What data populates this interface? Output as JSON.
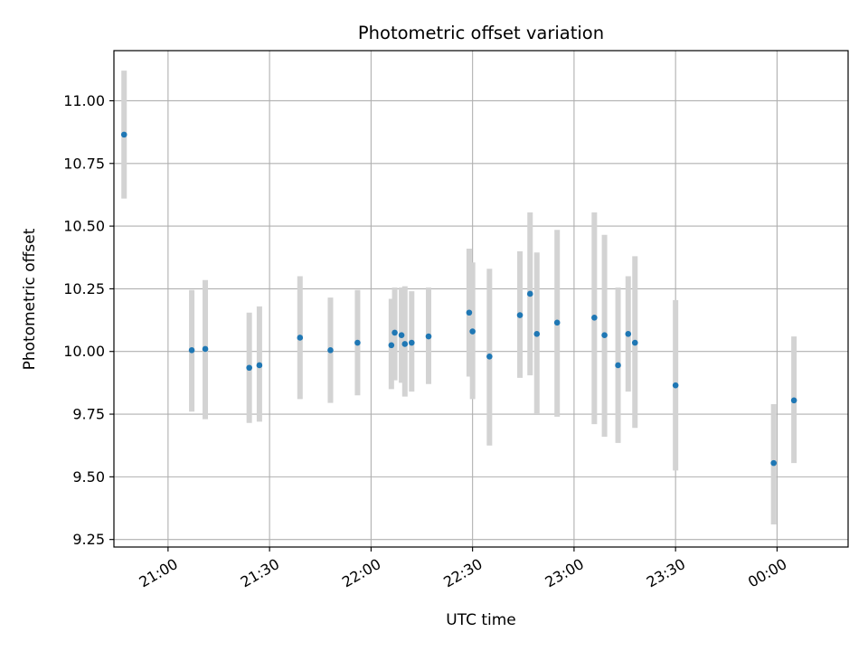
{
  "chart_data": {
    "type": "scatter",
    "title": "Photometric offset variation",
    "xlabel": "UTC time",
    "ylabel": "Photometric offset",
    "x_axis": "time",
    "xlim": [
      "20:44",
      "24:21"
    ],
    "ylim": [
      9.22,
      11.2
    ],
    "grid": true,
    "x_ticks": [
      {
        "t": "21:00",
        "label": "21:00"
      },
      {
        "t": "21:30",
        "label": "21:30"
      },
      {
        "t": "22:00",
        "label": "22:00"
      },
      {
        "t": "22:30",
        "label": "22:30"
      },
      {
        "t": "23:00",
        "label": "23:00"
      },
      {
        "t": "23:30",
        "label": "23:30"
      },
      {
        "t": "24:00",
        "label": "00:00"
      }
    ],
    "y_ticks": [
      {
        "v": 9.25,
        "label": "9.25"
      },
      {
        "v": 9.5,
        "label": "9.50"
      },
      {
        "v": 9.75,
        "label": "9.75"
      },
      {
        "v": 10.0,
        "label": "10.00"
      },
      {
        "v": 10.25,
        "label": "10.25"
      },
      {
        "v": 10.5,
        "label": "10.50"
      },
      {
        "v": 10.75,
        "label": "10.75"
      },
      {
        "v": 11.0,
        "label": "11.00"
      }
    ],
    "points": [
      {
        "t": "20:47",
        "y": 10.865,
        "lo": 10.61,
        "hi": 11.12
      },
      {
        "t": "21:07",
        "y": 10.005,
        "lo": 9.76,
        "hi": 10.245
      },
      {
        "t": "21:11",
        "y": 10.01,
        "lo": 9.73,
        "hi": 10.285
      },
      {
        "t": "21:24",
        "y": 9.935,
        "lo": 9.715,
        "hi": 10.155
      },
      {
        "t": "21:27",
        "y": 9.945,
        "lo": 9.72,
        "hi": 10.18
      },
      {
        "t": "21:39",
        "y": 10.055,
        "lo": 9.81,
        "hi": 10.3
      },
      {
        "t": "21:48",
        "y": 10.005,
        "lo": 9.795,
        "hi": 10.215
      },
      {
        "t": "21:56",
        "y": 10.035,
        "lo": 9.825,
        "hi": 10.245
      },
      {
        "t": "22:06",
        "y": 10.025,
        "lo": 9.85,
        "hi": 10.21
      },
      {
        "t": "22:07",
        "y": 10.075,
        "lo": 9.885,
        "hi": 10.255
      },
      {
        "t": "22:09",
        "y": 10.065,
        "lo": 9.875,
        "hi": 10.255
      },
      {
        "t": "22:10",
        "y": 10.03,
        "lo": 9.82,
        "hi": 10.26
      },
      {
        "t": "22:12",
        "y": 10.035,
        "lo": 9.84,
        "hi": 10.24
      },
      {
        "t": "22:17",
        "y": 10.06,
        "lo": 9.87,
        "hi": 10.255
      },
      {
        "t": "22:29",
        "y": 10.155,
        "lo": 9.9,
        "hi": 10.41
      },
      {
        "t": "22:30",
        "y": 10.08,
        "lo": 9.81,
        "hi": 10.355
      },
      {
        "t": "22:35",
        "y": 9.98,
        "lo": 9.625,
        "hi": 10.33
      },
      {
        "t": "22:44",
        "y": 10.145,
        "lo": 9.895,
        "hi": 10.4
      },
      {
        "t": "22:47",
        "y": 10.23,
        "lo": 9.905,
        "hi": 10.555
      },
      {
        "t": "22:49",
        "y": 10.07,
        "lo": 9.75,
        "hi": 10.395
      },
      {
        "t": "22:55",
        "y": 10.115,
        "lo": 9.74,
        "hi": 10.485
      },
      {
        "t": "23:06",
        "y": 10.135,
        "lo": 9.71,
        "hi": 10.555
      },
      {
        "t": "23:09",
        "y": 10.065,
        "lo": 9.66,
        "hi": 10.465
      },
      {
        "t": "23:13",
        "y": 9.945,
        "lo": 9.635,
        "hi": 10.255
      },
      {
        "t": "23:16",
        "y": 10.07,
        "lo": 9.84,
        "hi": 10.3
      },
      {
        "t": "23:18",
        "y": 10.035,
        "lo": 9.695,
        "hi": 10.38
      },
      {
        "t": "23:30",
        "y": 9.865,
        "lo": 9.525,
        "hi": 10.205
      },
      {
        "t": "23:59",
        "y": 9.555,
        "lo": 9.31,
        "hi": 9.79
      },
      {
        "t": "24:05",
        "y": 9.805,
        "lo": 9.555,
        "hi": 10.06
      }
    ],
    "colors": {
      "marker": "#1f77b4",
      "errorbar": "#d3d3d3",
      "grid": "#b0b0b0",
      "axis": "#000000"
    }
  }
}
